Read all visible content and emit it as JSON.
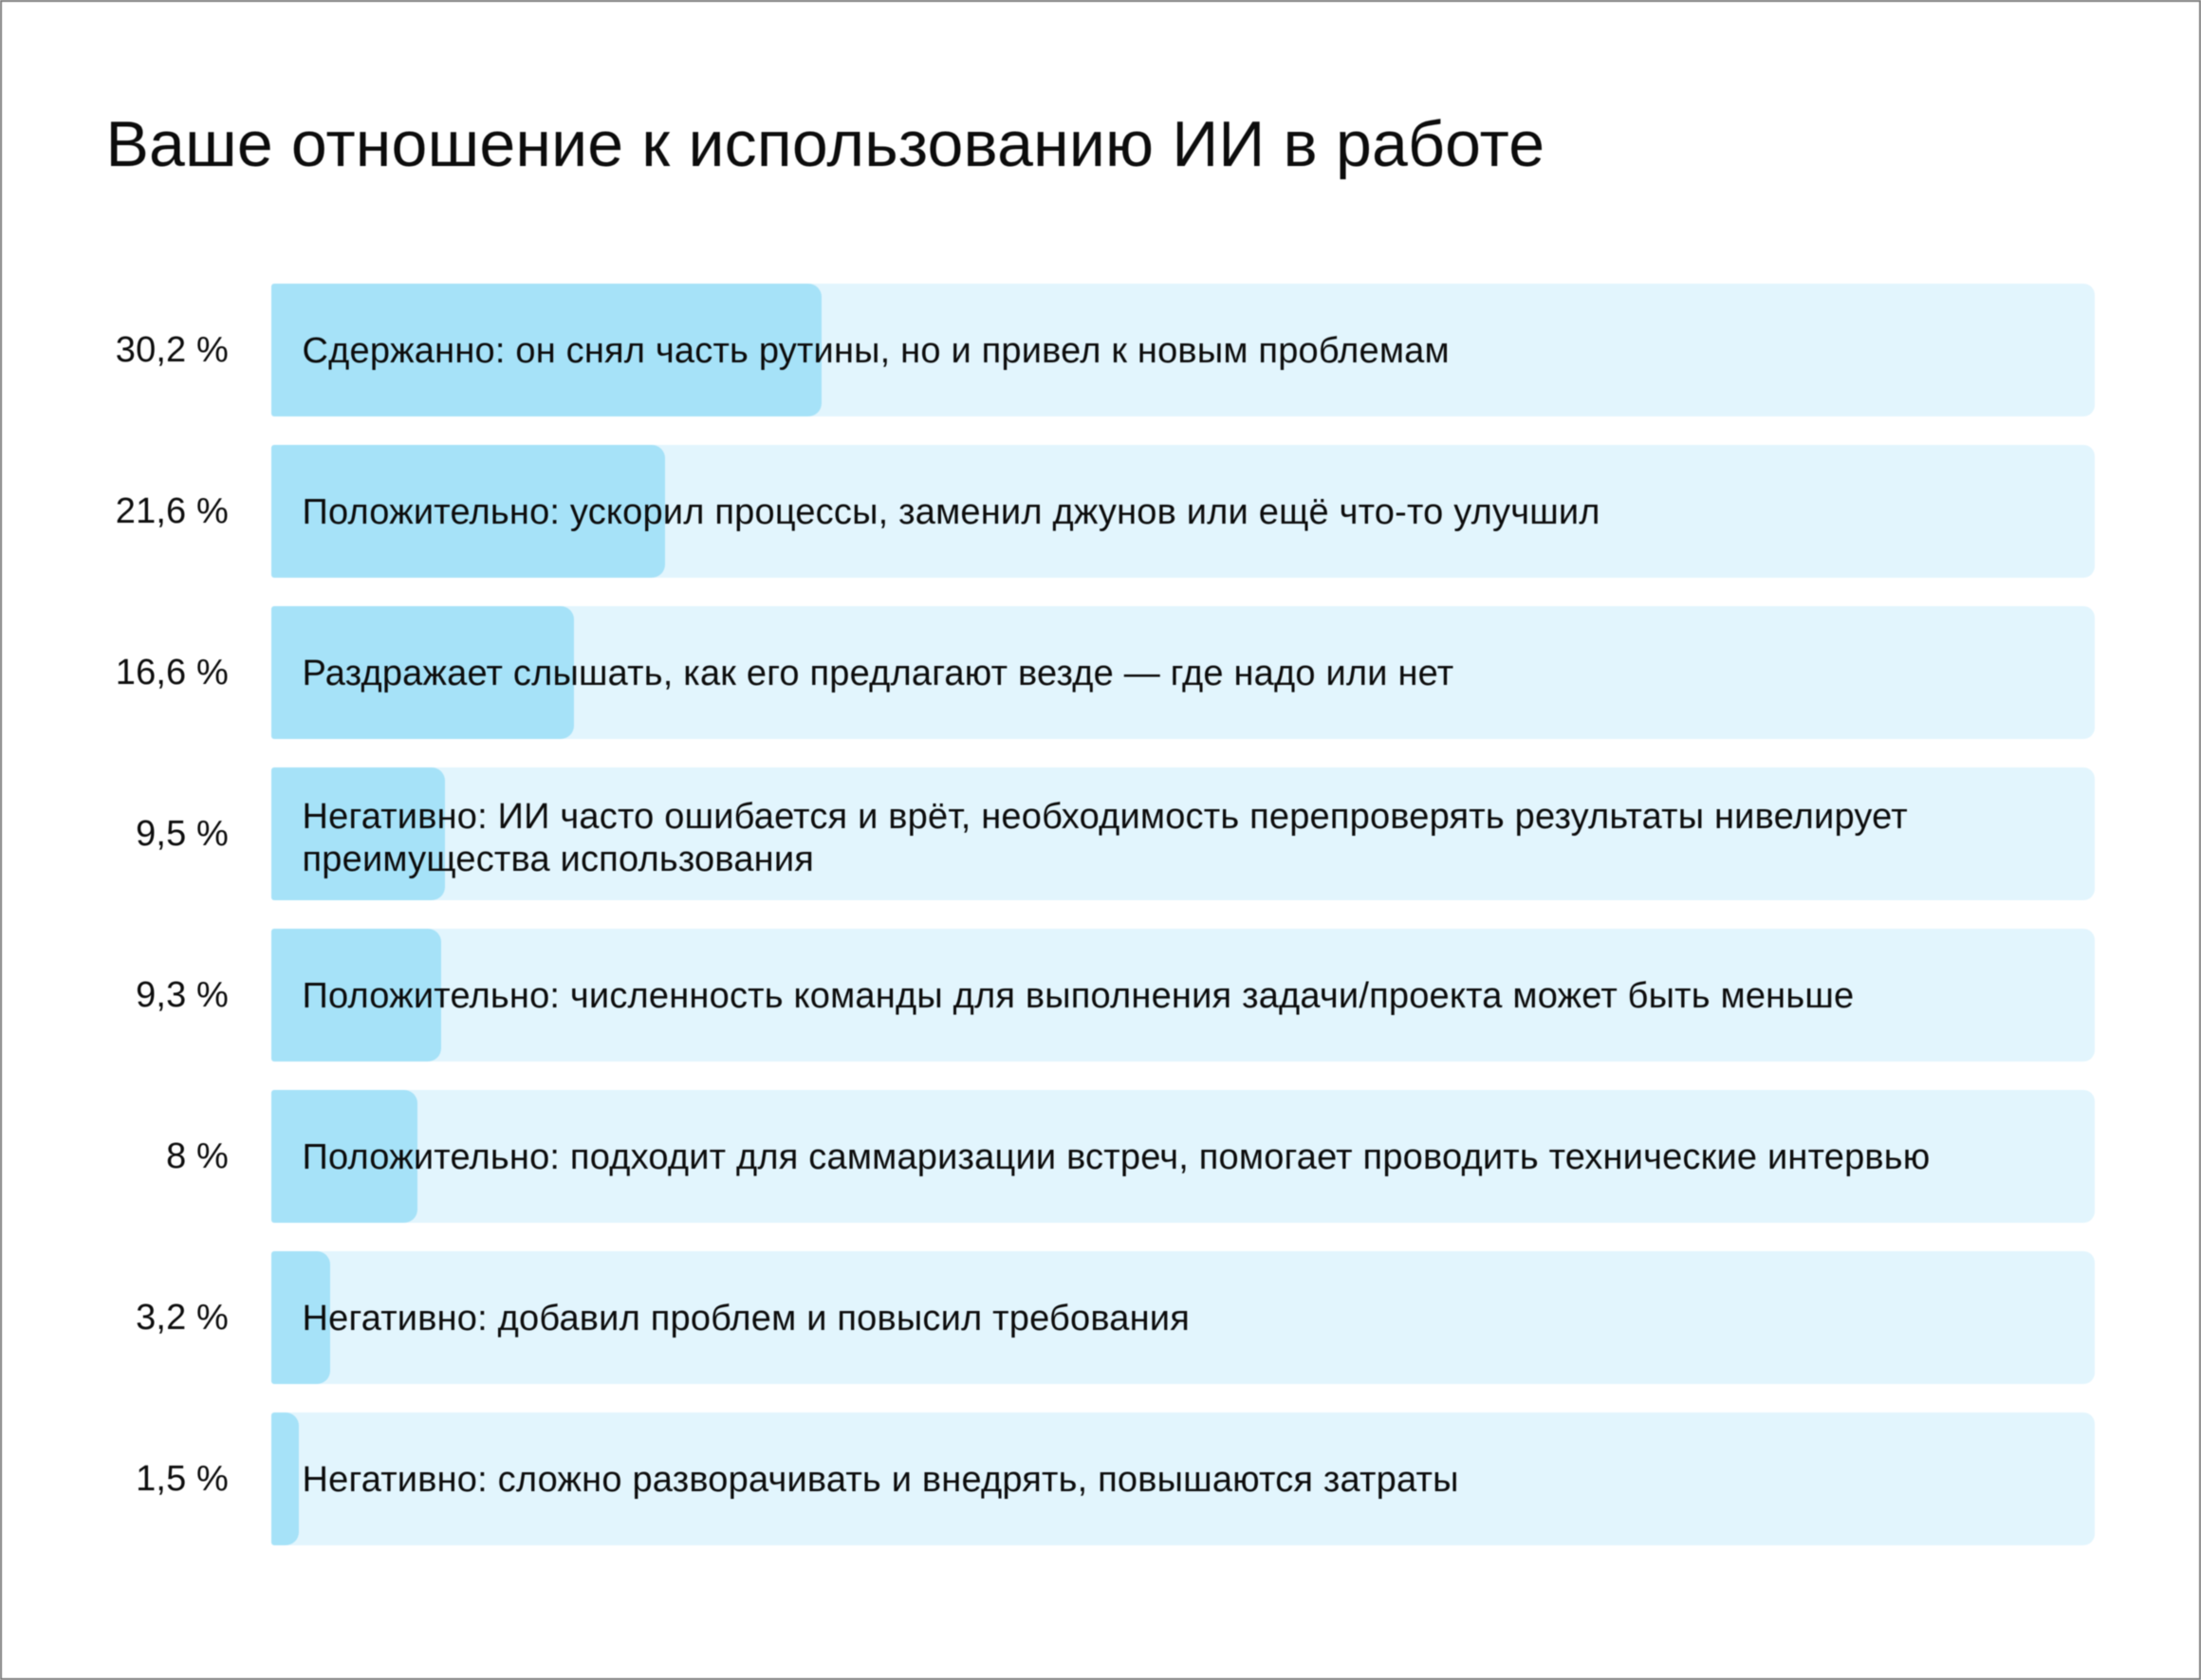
{
  "chart_data": {
    "type": "bar",
    "title": "Ваше отношение к использованию ИИ в работе",
    "orientation": "horizontal",
    "value_unit": "%",
    "xlim": [
      0,
      100
    ],
    "grid": false,
    "legend": false,
    "colors": {
      "bar_fill": "#a6e2f8",
      "bar_track": "#e2f5fd",
      "text": "#0c0c0c",
      "page_border": "#7b7b7b",
      "background": "#ffffff"
    },
    "rows": [
      {
        "value": 30.2,
        "value_label": "30,2 %",
        "label": "Сдержанно: он снял часть рутины, но и привел к новым проблемам"
      },
      {
        "value": 21.6,
        "value_label": "21,6 %",
        "label": "Положительно: ускорил процессы, заменил джунов или ещё что-то улучшил"
      },
      {
        "value": 16.6,
        "value_label": "16,6 %",
        "label": "Раздражает слышать, как его предлагают везде — где надо или нет"
      },
      {
        "value": 9.5,
        "value_label": "9,5 %",
        "label": "Негативно: ИИ часто ошибается и врёт, необходимость перепроверять результаты нивелирует\nпреимущества использования"
      },
      {
        "value": 9.3,
        "value_label": "9,3 %",
        "label": "Положительно: численность команды для выполнения задачи/проекта может быть меньше"
      },
      {
        "value": 8,
        "value_label": "8 %",
        "label": "Положительно: подходит для саммаризации встреч, помогает проводить технические интервью"
      },
      {
        "value": 3.2,
        "value_label": "3,2 %",
        "label": "Негативно: добавил проблем и повысил требования"
      },
      {
        "value": 1.5,
        "value_label": "1,5 %",
        "label": "Негативно: сложно разворачивать и внедрять, повышаются затраты"
      }
    ]
  }
}
